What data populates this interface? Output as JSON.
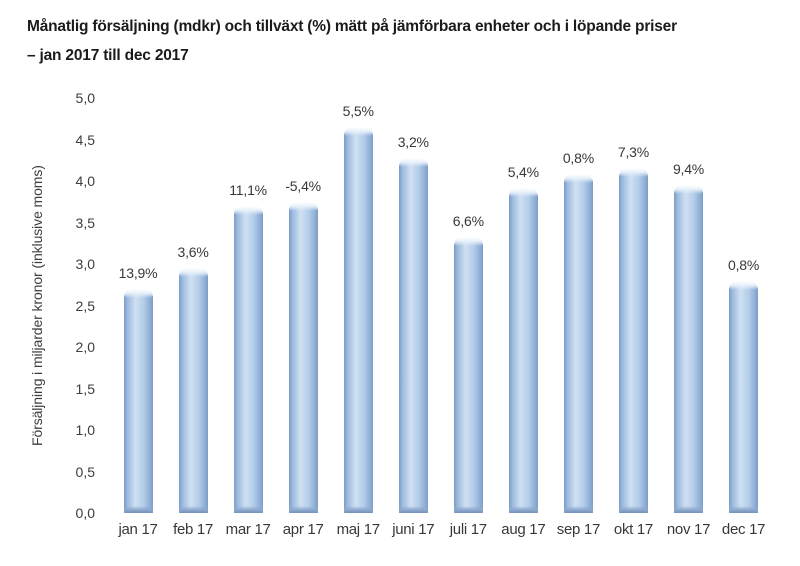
{
  "title": {
    "line1": "Månatlig försäljning (mdkr) och tillväxt (%) mätt på jämförbara enheter och i löpande priser",
    "line2": "– jan 2017 till dec 2017"
  },
  "chart_data": {
    "type": "bar",
    "categories": [
      "jan 17",
      "feb 17",
      "mar 17",
      "apr 17",
      "maj 17",
      "juni 17",
      "juli 17",
      "aug 17",
      "sep 17",
      "okt 17",
      "nov 17",
      "dec 17"
    ],
    "values": [
      2.7,
      2.95,
      3.7,
      3.75,
      4.65,
      4.28,
      3.33,
      3.92,
      4.08,
      4.16,
      3.95,
      2.8
    ],
    "bar_labels": [
      "13,9%",
      "3,6%",
      "11,1%",
      "-5,4%",
      "5,5%",
      "3,2%",
      "6,6%",
      "5,4%",
      "0,8%",
      "7,3%",
      "9,4%",
      "0,8%"
    ],
    "title": "Månatlig försäljning (mdkr) och tillväxt (%) mätt på jämförbara enheter och i löpande priser – jan 2017 till dec 2017",
    "xlabel": "",
    "ylabel": "Försäljning i miljarder kronor (inklusive moms)",
    "yticks": [
      "5,0",
      "4,5",
      "4,0",
      "3,5",
      "3,0",
      "2,5",
      "2,0",
      "1,5",
      "1,0",
      "0,5",
      "0,0"
    ],
    "ylim": [
      0,
      5
    ],
    "ytick_step": 0.5,
    "grid": false,
    "legend": false,
    "bar_color": "#aac7e8",
    "bar_edge_color": "#7a9cc6",
    "text_color": "#383838"
  }
}
